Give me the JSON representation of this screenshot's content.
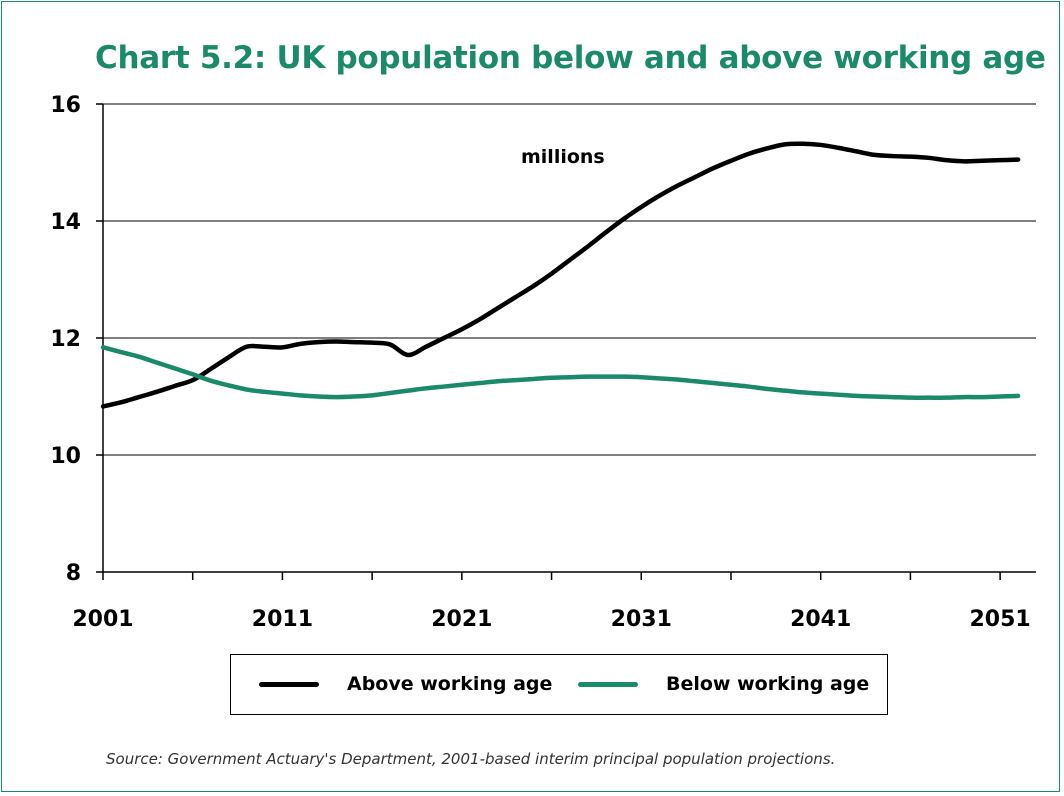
{
  "title": "Chart 5.2: UK population below and above working age",
  "source": "Source: Government Actuary's Department, 2001-based interim principal population projections.",
  "colors": {
    "frame": "#1a8a6a",
    "title": "#1a8a6a",
    "above": "#000000",
    "below": "#1a8a6a"
  },
  "chart_data": {
    "type": "line",
    "title": "Chart 5.2: UK population below and above working age",
    "unit_label": "millions",
    "xlabel": "",
    "ylabel": "",
    "xlim": [
      2001,
      2053
    ],
    "ylim": [
      8,
      16
    ],
    "yticks": [
      8,
      10,
      12,
      14,
      16
    ],
    "xtick_labels": [
      "2001",
      "2011",
      "2021",
      "2031",
      "2041",
      "2051"
    ],
    "xtick_values": [
      2001,
      2011,
      2021,
      2031,
      2041,
      2051
    ],
    "grid": true,
    "legend_position": "bottom",
    "x": [
      2001,
      2002,
      2003,
      2004,
      2005,
      2006,
      2007,
      2008,
      2009,
      2010,
      2011,
      2012,
      2013,
      2014,
      2015,
      2016,
      2017,
      2018,
      2019,
      2020,
      2021,
      2022,
      2023,
      2024,
      2025,
      2026,
      2027,
      2028,
      2029,
      2030,
      2031,
      2032,
      2033,
      2034,
      2035,
      2036,
      2037,
      2038,
      2039,
      2040,
      2041,
      2042,
      2043,
      2044,
      2045,
      2046,
      2047,
      2048,
      2049,
      2050,
      2051,
      2052
    ],
    "series": [
      {
        "name": "Above working age",
        "color": "#000000",
        "values": [
          10.83,
          10.9,
          10.99,
          11.08,
          11.18,
          11.28,
          11.47,
          11.67,
          11.85,
          11.85,
          11.84,
          11.9,
          11.93,
          11.94,
          11.93,
          11.92,
          11.89,
          11.71,
          11.85,
          12.0,
          12.15,
          12.32,
          12.51,
          12.7,
          12.89,
          13.1,
          13.33,
          13.56,
          13.8,
          14.03,
          14.24,
          14.43,
          14.6,
          14.75,
          14.9,
          15.03,
          15.15,
          15.24,
          15.31,
          15.32,
          15.3,
          15.25,
          15.19,
          15.13,
          15.11,
          15.1,
          15.08,
          15.04,
          15.02,
          15.03,
          15.04,
          15.05
        ]
      },
      {
        "name": "Below working age",
        "color": "#1a8a6a",
        "values": [
          11.84,
          11.76,
          11.68,
          11.58,
          11.48,
          11.38,
          11.27,
          11.19,
          11.12,
          11.08,
          11.05,
          11.02,
          11.0,
          10.99,
          11.0,
          11.02,
          11.06,
          11.1,
          11.14,
          11.17,
          11.2,
          11.23,
          11.26,
          11.28,
          11.3,
          11.32,
          11.33,
          11.34,
          11.34,
          11.34,
          11.33,
          11.31,
          11.29,
          11.26,
          11.23,
          11.2,
          11.17,
          11.13,
          11.1,
          11.07,
          11.05,
          11.03,
          11.01,
          11.0,
          10.99,
          10.98,
          10.98,
          10.98,
          10.99,
          10.99,
          11.0,
          11.01
        ]
      }
    ]
  }
}
